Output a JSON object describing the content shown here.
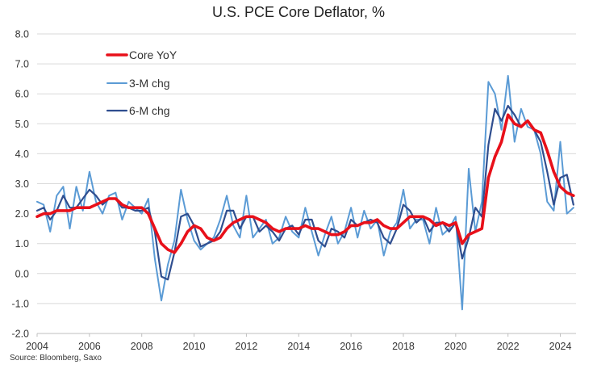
{
  "chart_data": {
    "type": "line",
    "title": "U.S. PCE Core Deflator, %",
    "source": "Source: Bloomberg, Saxo",
    "xlabel": "",
    "ylabel": "",
    "xlim": [
      2004,
      2024.6
    ],
    "ylim": [
      -2.0,
      8.0
    ],
    "y_ticks": [
      "8.0",
      "7.0",
      "6.0",
      "5.0",
      "4.0",
      "3.0",
      "2.0",
      "1.0",
      "0.0",
      "-1.0",
      "-2.0"
    ],
    "y_tick_values": [
      8,
      7,
      6,
      5,
      4,
      3,
      2,
      1,
      0,
      -1,
      -2
    ],
    "x_ticks": [
      "2004",
      "2006",
      "2008",
      "2010",
      "2012",
      "2014",
      "2016",
      "2018",
      "2020",
      "2022",
      "2024"
    ],
    "x_tick_values": [
      2004,
      2006,
      2008,
      2010,
      2012,
      2014,
      2016,
      2018,
      2020,
      2022,
      2024
    ],
    "grid": true,
    "legend_position": "top-left",
    "series": [
      {
        "name": "Core YoY",
        "color": "#e8101a",
        "x": [
          2004.0,
          2004.25,
          2004.5,
          2004.75,
          2005.0,
          2005.25,
          2005.5,
          2005.75,
          2006.0,
          2006.25,
          2006.5,
          2006.75,
          2007.0,
          2007.25,
          2007.5,
          2007.75,
          2008.0,
          2008.25,
          2008.5,
          2008.75,
          2009.0,
          2009.25,
          2009.5,
          2009.75,
          2010.0,
          2010.25,
          2010.5,
          2010.75,
          2011.0,
          2011.25,
          2011.5,
          2011.75,
          2012.0,
          2012.25,
          2012.5,
          2012.75,
          2013.0,
          2013.25,
          2013.5,
          2013.75,
          2014.0,
          2014.25,
          2014.5,
          2014.75,
          2015.0,
          2015.25,
          2015.5,
          2015.75,
          2016.0,
          2016.25,
          2016.5,
          2016.75,
          2017.0,
          2017.25,
          2017.5,
          2017.75,
          2018.0,
          2018.25,
          2018.5,
          2018.75,
          2019.0,
          2019.25,
          2019.5,
          2019.75,
          2020.0,
          2020.25,
          2020.5,
          2020.75,
          2021.0,
          2021.25,
          2021.5,
          2021.75,
          2022.0,
          2022.25,
          2022.5,
          2022.75,
          2023.0,
          2023.25,
          2023.5,
          2023.75,
          2024.0,
          2024.25,
          2024.5
        ],
        "values": [
          1.9,
          2.0,
          2.0,
          2.1,
          2.1,
          2.1,
          2.2,
          2.2,
          2.2,
          2.3,
          2.4,
          2.5,
          2.5,
          2.3,
          2.2,
          2.2,
          2.2,
          2.0,
          1.5,
          1.0,
          0.8,
          0.7,
          1.0,
          1.4,
          1.6,
          1.5,
          1.2,
          1.1,
          1.2,
          1.5,
          1.7,
          1.8,
          1.9,
          1.9,
          1.8,
          1.7,
          1.5,
          1.4,
          1.5,
          1.5,
          1.5,
          1.6,
          1.5,
          1.5,
          1.4,
          1.3,
          1.3,
          1.4,
          1.6,
          1.6,
          1.7,
          1.7,
          1.8,
          1.6,
          1.5,
          1.5,
          1.7,
          1.9,
          1.9,
          1.9,
          1.8,
          1.6,
          1.7,
          1.6,
          1.7,
          1.0,
          1.3,
          1.4,
          1.5,
          3.2,
          3.9,
          4.4,
          5.3,
          5.0,
          4.9,
          5.1,
          4.8,
          4.7,
          4.1,
          3.4,
          2.9,
          2.7,
          2.6
        ]
      },
      {
        "name": "3-M chg",
        "color": "#5b9bd5",
        "x": [
          2004.0,
          2004.25,
          2004.5,
          2004.75,
          2005.0,
          2005.25,
          2005.5,
          2005.75,
          2006.0,
          2006.25,
          2006.5,
          2006.75,
          2007.0,
          2007.25,
          2007.5,
          2007.75,
          2008.0,
          2008.25,
          2008.5,
          2008.75,
          2009.0,
          2009.25,
          2009.5,
          2009.75,
          2010.0,
          2010.25,
          2010.5,
          2010.75,
          2011.0,
          2011.25,
          2011.5,
          2011.75,
          2012.0,
          2012.25,
          2012.5,
          2012.75,
          2013.0,
          2013.25,
          2013.5,
          2013.75,
          2014.0,
          2014.25,
          2014.5,
          2014.75,
          2015.0,
          2015.25,
          2015.5,
          2015.75,
          2016.0,
          2016.25,
          2016.5,
          2016.75,
          2017.0,
          2017.25,
          2017.5,
          2017.75,
          2018.0,
          2018.25,
          2018.5,
          2018.75,
          2019.0,
          2019.25,
          2019.5,
          2019.75,
          2020.0,
          2020.25,
          2020.5,
          2020.75,
          2021.0,
          2021.25,
          2021.5,
          2021.75,
          2022.0,
          2022.25,
          2022.5,
          2022.75,
          2023.0,
          2023.25,
          2023.5,
          2023.75,
          2024.0,
          2024.25,
          2024.5
        ],
        "values": [
          2.4,
          2.3,
          1.4,
          2.6,
          2.9,
          1.5,
          2.9,
          2.1,
          3.4,
          2.4,
          2.0,
          2.6,
          2.7,
          1.8,
          2.4,
          2.2,
          2.0,
          2.5,
          0.5,
          -0.9,
          0.3,
          1.1,
          2.8,
          1.8,
          1.1,
          0.8,
          1.0,
          1.2,
          1.8,
          2.6,
          1.6,
          1.2,
          2.6,
          1.2,
          1.5,
          1.8,
          1.0,
          1.2,
          1.9,
          1.4,
          1.2,
          2.2,
          1.4,
          0.6,
          1.3,
          1.9,
          1.0,
          1.4,
          2.2,
          1.2,
          2.1,
          1.5,
          1.8,
          0.6,
          1.4,
          1.7,
          2.8,
          1.5,
          1.8,
          1.8,
          1.0,
          2.2,
          1.3,
          1.5,
          1.9,
          -1.2,
          3.5,
          1.4,
          2.4,
          6.4,
          6.0,
          4.8,
          6.6,
          4.4,
          5.5,
          4.9,
          4.8,
          4.0,
          2.4,
          2.1,
          4.4,
          2.0,
          2.2
        ]
      },
      {
        "name": "6-M chg",
        "color": "#2f4e8f",
        "x": [
          2004.0,
          2004.25,
          2004.5,
          2004.75,
          2005.0,
          2005.25,
          2005.5,
          2005.75,
          2006.0,
          2006.25,
          2006.5,
          2006.75,
          2007.0,
          2007.25,
          2007.5,
          2007.75,
          2008.0,
          2008.25,
          2008.5,
          2008.75,
          2009.0,
          2009.25,
          2009.5,
          2009.75,
          2010.0,
          2010.25,
          2010.5,
          2010.75,
          2011.0,
          2011.25,
          2011.5,
          2011.75,
          2012.0,
          2012.25,
          2012.5,
          2012.75,
          2013.0,
          2013.25,
          2013.5,
          2013.75,
          2014.0,
          2014.25,
          2014.5,
          2014.75,
          2015.0,
          2015.25,
          2015.5,
          2015.75,
          2016.0,
          2016.25,
          2016.5,
          2016.75,
          2017.0,
          2017.25,
          2017.5,
          2017.75,
          2018.0,
          2018.25,
          2018.5,
          2018.75,
          2019.0,
          2019.25,
          2019.5,
          2019.75,
          2020.0,
          2020.25,
          2020.5,
          2020.75,
          2021.0,
          2021.25,
          2021.5,
          2021.75,
          2022.0,
          2022.25,
          2022.5,
          2022.75,
          2023.0,
          2023.25,
          2023.5,
          2023.75,
          2024.0,
          2024.25,
          2024.5
        ],
        "values": [
          2.1,
          2.2,
          1.8,
          2.1,
          2.6,
          2.2,
          2.2,
          2.5,
          2.8,
          2.6,
          2.3,
          2.5,
          2.5,
          2.2,
          2.2,
          2.1,
          2.1,
          2.2,
          1.4,
          -0.1,
          -0.2,
          0.7,
          1.9,
          2.0,
          1.6,
          0.9,
          1.0,
          1.1,
          1.4,
          2.1,
          2.1,
          1.5,
          1.9,
          1.9,
          1.4,
          1.6,
          1.4,
          1.1,
          1.5,
          1.6,
          1.3,
          1.8,
          1.8,
          1.1,
          0.9,
          1.5,
          1.4,
          1.2,
          1.8,
          1.6,
          1.7,
          1.8,
          1.7,
          1.2,
          1.0,
          1.5,
          2.3,
          2.1,
          1.7,
          1.9,
          1.4,
          1.7,
          1.7,
          1.4,
          1.7,
          0.5,
          1.2,
          2.2,
          1.9,
          4.3,
          5.5,
          5.1,
          5.6,
          5.3,
          4.9,
          5.1,
          4.8,
          4.4,
          3.4,
          2.3,
          3.2,
          3.3,
          2.3
        ]
      }
    ]
  }
}
